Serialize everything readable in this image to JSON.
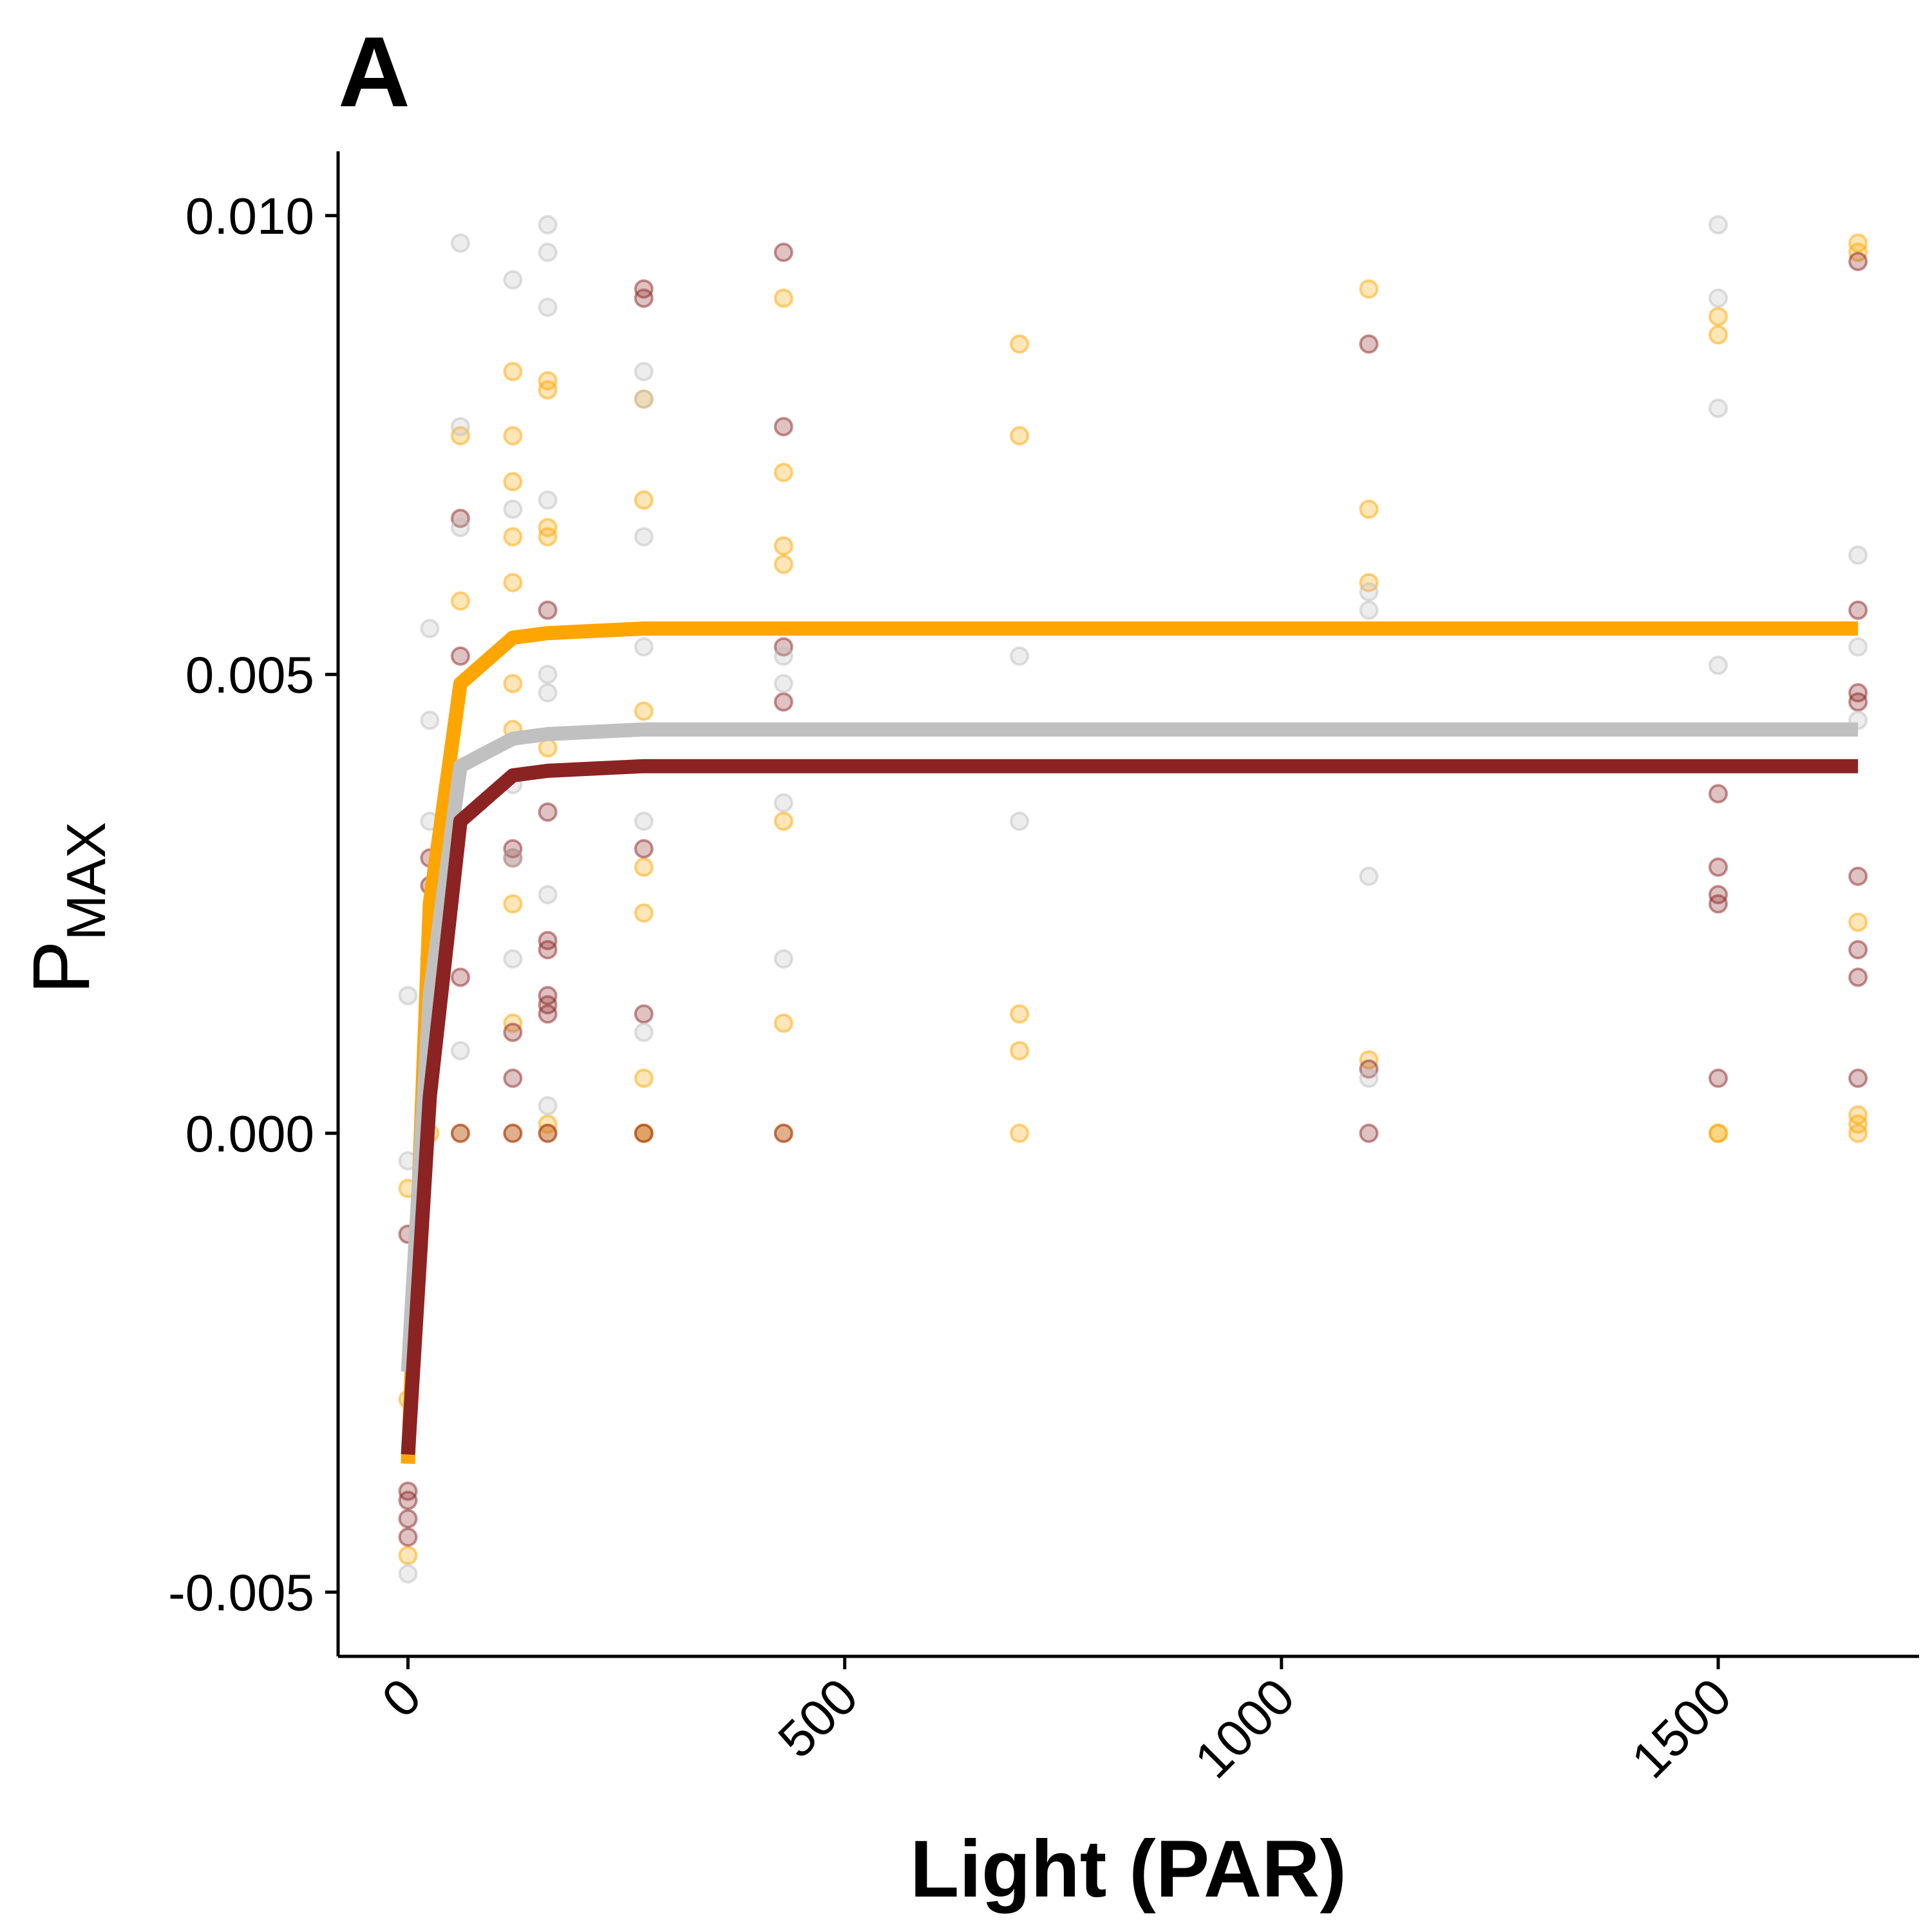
{
  "panel_label": "A",
  "colors": {
    "orange": "#FFA500",
    "dark_red": "#8B2323",
    "gray": "#C0C0C0"
  },
  "chart_data": {
    "type": "scatter",
    "title": "",
    "xlabel": "Light (PAR)",
    "ylabel": "P",
    "ylabel_subscript": "MAX",
    "xlim": [
      -80,
      1730
    ],
    "ylim": [
      -0.0057,
      0.0107
    ],
    "x_ticks": [
      0,
      500,
      1000,
      1500
    ],
    "x_tick_labels": [
      "0",
      "500",
      "1000",
      "1500"
    ],
    "y_ticks": [
      -0.005,
      0,
      0.005,
      0.01
    ],
    "y_tick_labels": [
      "-0.005",
      "0.000",
      "0.005",
      "0.010"
    ],
    "grid": false,
    "series": [
      {
        "color": "#FFA500",
        "curve": {
          "x": [
            0,
            25,
            60,
            120,
            160,
            270,
            430,
            700,
            1100,
            1660
          ],
          "y": [
            -0.0036,
            0.0025,
            0.0049,
            0.0054,
            0.00545,
            0.0055,
            0.0055,
            0.0055,
            0.0055,
            0.0055
          ]
        },
        "points": {
          "x": [
            0,
            0,
            0,
            25,
            25,
            60,
            60,
            60,
            120,
            120,
            120,
            120,
            120,
            120,
            120,
            120,
            120,
            120,
            160,
            160,
            160,
            160,
            160,
            160,
            160,
            270,
            270,
            270,
            270,
            270,
            270,
            270,
            270,
            430,
            430,
            430,
            430,
            430,
            430,
            430,
            700,
            700,
            700,
            700,
            700,
            1100,
            1100,
            1100,
            1100,
            1500,
            1500,
            1500,
            1500,
            1660,
            1660,
            1660,
            1660,
            1660,
            1660
          ],
          "y": [
            -0.0046,
            -0.0029,
            -0.0006,
            0.0,
            0.0019,
            0.0076,
            0.0058,
            0.0,
            0.0083,
            0.0076,
            0.0071,
            0.0065,
            0.006,
            0.0049,
            0.0044,
            0.0025,
            0.0012,
            0.0,
            0.0082,
            0.0081,
            0.0066,
            0.0065,
            0.0042,
            0.0001,
            0.0,
            0.008,
            0.0069,
            0.0046,
            0.0029,
            0.0024,
            0.0006,
            0.0,
            0.0,
            0.0091,
            0.0072,
            0.0064,
            0.0062,
            0.0034,
            0.0012,
            0.0,
            0.0086,
            0.0076,
            0.0013,
            0.0009,
            0.0,
            0.0092,
            0.0068,
            0.006,
            0.0008,
            0.0089,
            0.0087,
            0.0,
            0.0,
            0.0097,
            0.0096,
            0.0023,
            0.0002,
            0.0001,
            0.0
          ]
        }
      },
      {
        "color": "#8B2323",
        "curve": {
          "x": [
            0,
            25,
            60,
            120,
            160,
            270,
            430,
            700,
            1100,
            1660
          ],
          "y": [
            -0.0035,
            0.0004,
            0.0034,
            0.0039,
            0.00395,
            0.004,
            0.004,
            0.004,
            0.004,
            0.004
          ]
        },
        "points": {
          "x": [
            0,
            0,
            0,
            0,
            0,
            25,
            25,
            60,
            60,
            60,
            60,
            120,
            120,
            120,
            120,
            120,
            160,
            160,
            160,
            160,
            160,
            160,
            160,
            160,
            270,
            270,
            270,
            270,
            270,
            430,
            430,
            430,
            430,
            430,
            1100,
            1100,
            1100,
            1500,
            1500,
            1500,
            1500,
            1500,
            1660,
            1660,
            1660,
            1660,
            1660,
            1660,
            1660,
            1660
          ],
          "y": [
            -0.0044,
            -0.0042,
            -0.004,
            -0.0039,
            -0.0011,
            0.003,
            0.0027,
            0.0067,
            0.0052,
            0.0017,
            0.0,
            0.0031,
            0.003,
            0.0011,
            0.0006,
            0.0,
            0.0057,
            0.0035,
            0.0021,
            0.002,
            0.0015,
            0.0014,
            0.0013,
            0.0,
            0.0092,
            0.0091,
            0.0031,
            0.0013,
            0.0,
            0.0096,
            0.0077,
            0.0053,
            0.0047,
            0.0,
            0.0086,
            0.0007,
            0.0,
            0.0037,
            0.0029,
            0.0026,
            0.0025,
            0.0006,
            0.0095,
            0.0057,
            0.0048,
            0.0047,
            0.0028,
            0.002,
            0.0017,
            0.0006
          ]
        }
      },
      {
        "color": "#C0C0C0",
        "curve": {
          "x": [
            0,
            25,
            60,
            120,
            160,
            270,
            430,
            700,
            1100,
            1660
          ],
          "y": [
            -0.0026,
            0.0015,
            0.004,
            0.0043,
            0.00435,
            0.0044,
            0.0044,
            0.0044,
            0.0044,
            0.0044
          ]
        },
        "points": {
          "x": [
            0,
            0,
            0,
            25,
            25,
            25,
            60,
            60,
            60,
            60,
            120,
            120,
            120,
            120,
            120,
            160,
            160,
            160,
            160,
            160,
            160,
            160,
            160,
            270,
            270,
            270,
            270,
            270,
            270,
            430,
            430,
            430,
            430,
            700,
            700,
            1100,
            1100,
            1100,
            1100,
            1500,
            1500,
            1500,
            1500,
            1660,
            1660,
            1660
          ],
          "y": [
            -0.0048,
            -0.0003,
            0.0015,
            0.0055,
            0.0045,
            0.0034,
            0.0097,
            0.0077,
            0.0066,
            0.0009,
            0.0093,
            0.0068,
            0.0038,
            0.003,
            0.0019,
            0.0099,
            0.0096,
            0.009,
            0.0069,
            0.005,
            0.0048,
            0.0026,
            0.0003,
            0.0083,
            0.008,
            0.0065,
            0.0053,
            0.0034,
            0.0011,
            0.0052,
            0.0049,
            0.0036,
            0.0019,
            0.0052,
            0.0034,
            0.0059,
            0.0057,
            0.0028,
            0.0006,
            0.0099,
            0.0091,
            0.0079,
            0.0051,
            0.0063,
            0.0053,
            0.0045
          ]
        }
      }
    ]
  }
}
